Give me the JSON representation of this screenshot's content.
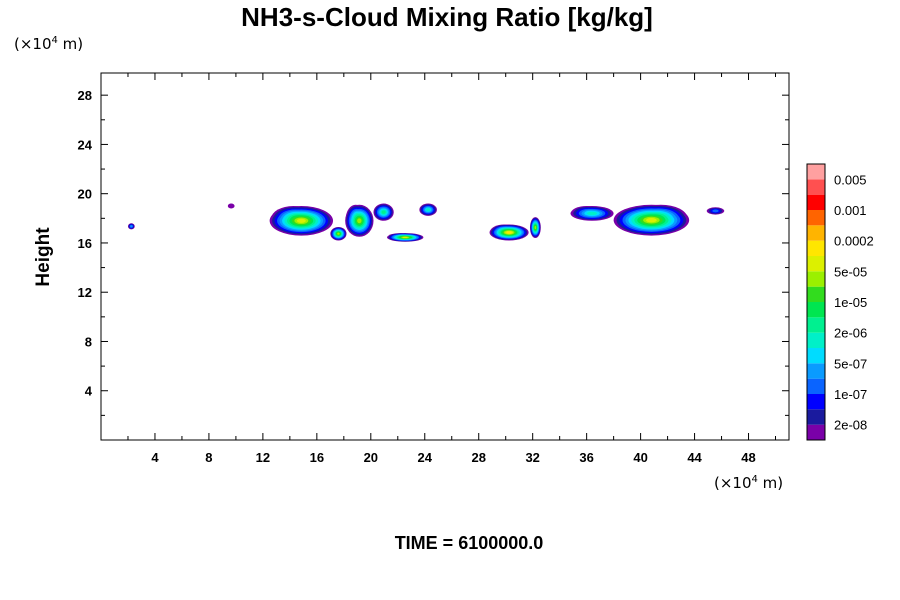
{
  "chart_data": {
    "type": "heatmap",
    "title": "NH3-s-Cloud Mixing Ratio [kg/kg]",
    "xlabel": "",
    "ylabel": "Height",
    "x_unit_base": "(×10",
    "x_unit_exp": "4",
    "x_unit_tail": " m)",
    "y_unit_base": "(×10",
    "y_unit_exp": "4",
    "y_unit_tail": " m)",
    "xlim": [
      0,
      51
    ],
    "ylim": [
      0,
      29.8
    ],
    "x_ticks": [
      4,
      8,
      12,
      16,
      20,
      24,
      28,
      32,
      36,
      40,
      44,
      48
    ],
    "y_ticks": [
      4,
      8,
      12,
      16,
      20,
      24,
      28
    ],
    "footer": "TIME = 6100000.0",
    "grid": false,
    "colorbar": {
      "placement": "right",
      "colors": [
        "#7a00a8",
        "#1a1a9e",
        "#0000ff",
        "#0a64ff",
        "#0a9bff",
        "#00dcff",
        "#00f0c8",
        "#00f090",
        "#00e650",
        "#32dc1e",
        "#9bf000",
        "#dcf000",
        "#ffe600",
        "#ffb400",
        "#ff6400",
        "#ff0000",
        "#ff5050",
        "#ffa0a0"
      ],
      "labels": [
        "2e-08",
        "1e-07",
        "5e-07",
        "2e-06",
        "1e-05",
        "5e-05",
        "0.0002",
        "0.001",
        "0.005"
      ]
    },
    "cloud_regions": [
      {
        "x": [
          12.5,
          17.2
        ],
        "y": [
          16.6,
          19.0
        ],
        "level": 12
      },
      {
        "x": [
          17.0,
          18.2
        ],
        "y": [
          16.2,
          17.3
        ],
        "level": 11
      },
      {
        "x": [
          18.1,
          20.2
        ],
        "y": [
          16.5,
          19.1
        ],
        "level": 11
      },
      {
        "x": [
          20.2,
          21.7
        ],
        "y": [
          17.8,
          19.2
        ],
        "level": 8
      },
      {
        "x": [
          21.2,
          23.9
        ],
        "y": [
          16.1,
          16.8
        ],
        "level": 12
      },
      {
        "x": [
          23.6,
          24.9
        ],
        "y": [
          18.2,
          19.2
        ],
        "level": 7
      },
      {
        "x": [
          28.8,
          31.7
        ],
        "y": [
          16.2,
          17.5
        ],
        "level": 13
      },
      {
        "x": [
          31.8,
          32.6
        ],
        "y": [
          16.4,
          18.1
        ],
        "level": 11
      },
      {
        "x": [
          34.8,
          38.0
        ],
        "y": [
          17.8,
          19.0
        ],
        "level": 7
      },
      {
        "x": [
          38.0,
          43.6
        ],
        "y": [
          16.6,
          19.1
        ],
        "level": 12
      },
      {
        "x": [
          44.9,
          46.2
        ],
        "y": [
          18.3,
          18.9
        ],
        "level": 4
      },
      {
        "x": [
          2.0,
          2.5
        ],
        "y": [
          17.1,
          17.6
        ],
        "level": 5
      },
      {
        "x": [
          9.4,
          9.9
        ],
        "y": [
          18.8,
          19.2
        ],
        "level": 1
      }
    ]
  }
}
